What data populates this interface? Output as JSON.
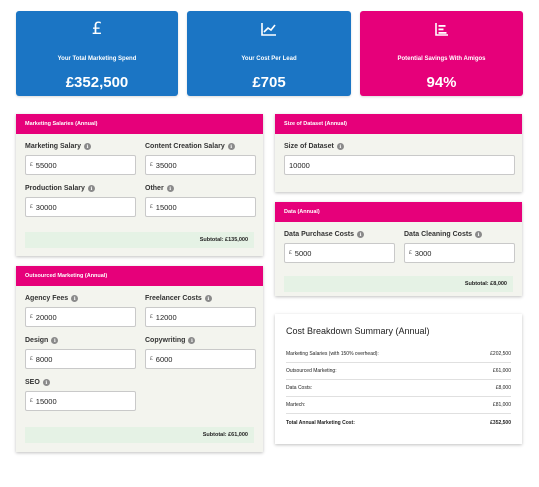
{
  "kpis": [
    {
      "label": "Your Total Marketing Spend",
      "value": "£352,500",
      "icon": "pound-icon"
    },
    {
      "label": "Your Cost Per Lead",
      "value": "£705",
      "icon": "line-chart-icon"
    },
    {
      "label": "Potential Savings With Amigos",
      "value": "94%",
      "icon": "bar-chart-icon"
    }
  ],
  "colors": {
    "blue": "#1b75c4",
    "pink": "#e6007a",
    "panel": "#f3f4ee",
    "subtotal_bg": "#e5f2e5"
  },
  "currency_symbol": "£",
  "salaries": {
    "title": "Marketing Salaries (Annual)",
    "fields": [
      {
        "label": "Marketing Salary",
        "value": "55000"
      },
      {
        "label": "Content Creation Salary",
        "value": "35000"
      },
      {
        "label": "Production Salary",
        "value": "30000"
      },
      {
        "label": "Other",
        "value": "15000"
      }
    ],
    "subtotal": "Subtotal: £135,000"
  },
  "outsourced": {
    "title": "Outsourced Marketing (Annual)",
    "fields": [
      {
        "label": "Agency Fees",
        "value": "20000"
      },
      {
        "label": "Freelancer Costs",
        "value": "12000"
      },
      {
        "label": "Design",
        "value": "8000"
      },
      {
        "label": "Copywriting",
        "value": "6000"
      },
      {
        "label": "SEO",
        "value": "15000"
      }
    ],
    "subtotal": "Subtotal: £61,000"
  },
  "dataset": {
    "title": "Size of Dataset (Annual)",
    "field": {
      "label": "Size of Dataset",
      "value": "10000"
    }
  },
  "data": {
    "title": "Data (Annual)",
    "fields": [
      {
        "label": "Data Purchase Costs",
        "value": "5000"
      },
      {
        "label": "Data Cleaning Costs",
        "value": "3000"
      }
    ],
    "subtotal": "Subtotal: £8,000"
  },
  "summary": {
    "title": "Cost Breakdown Summary (Annual)",
    "rows": [
      {
        "label": "Marketing Salaries (with 150% overhead):",
        "value": "£202,500"
      },
      {
        "label": "Outsourced Marketing:",
        "value": "£61,000"
      },
      {
        "label": "Data Costs:",
        "value": "£8,000"
      },
      {
        "label": "Martech:",
        "value": "£81,000"
      },
      {
        "label": "Total Annual Marketing Cost:",
        "value": "£352,500"
      }
    ]
  }
}
